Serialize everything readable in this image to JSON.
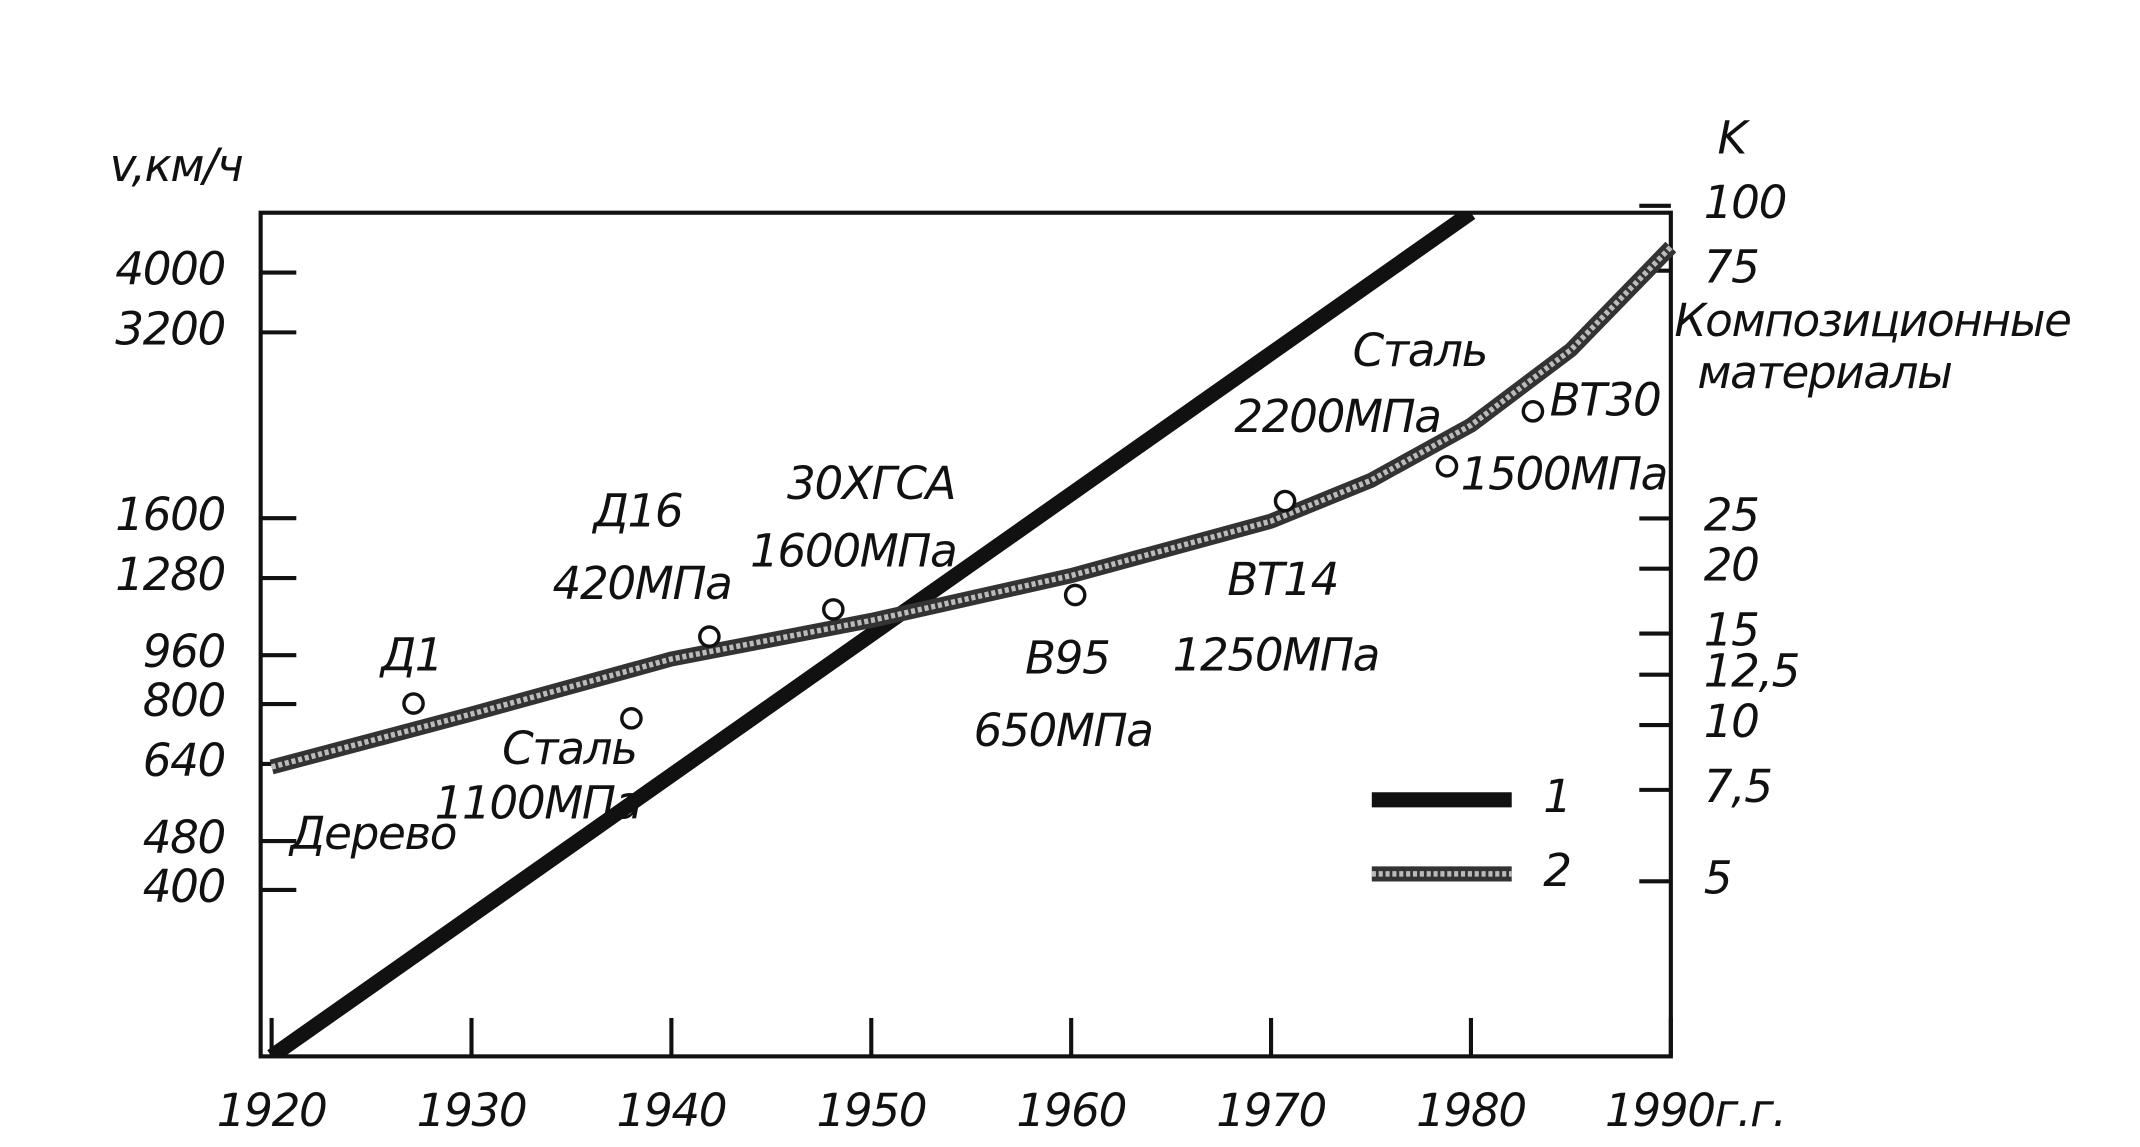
{
  "chart_data": {
    "type": "line",
    "y_label": "v,км/ч",
    "y2_label": "K",
    "xlim": [
      1920,
      1990
    ],
    "xticks": [
      1920,
      1930,
      1940,
      1950,
      1960,
      1970,
      1980,
      {
        "value": 1990,
        "label": "1990г.г."
      }
    ],
    "ylim": [
      215,
      5000
    ],
    "yticks": [
      400,
      480,
      640,
      800,
      960,
      1280,
      1600,
      3200,
      4000
    ],
    "log_y": true,
    "y2lim": [
      2.3,
      97
    ],
    "y2ticks": [
      5,
      {
        "value": 7.5,
        "label": "7,5"
      },
      10,
      {
        "value": 12.5,
        "label": "12,5"
      },
      15,
      20,
      25,
      75,
      100
    ],
    "log_y2": true,
    "series": [
      {
        "name": "1",
        "color": "#111111",
        "x": [
          1920,
          1980
        ],
        "values": [
          215,
          5000
        ]
      },
      {
        "name": "2",
        "color": "#333333",
        "axis": "y2",
        "x": [
          1920,
          1930,
          1940,
          1950,
          1960,
          1970,
          1975,
          1980,
          1985,
          1990
        ],
        "values": [
          8.3,
          10.5,
          13.4,
          15.9,
          19.4,
          24.7,
          29.6,
          37.8,
          52.8,
          83.3
        ]
      }
    ],
    "markers": {
      "axis": "y2",
      "x": [
        1927.1,
        1938.0,
        1941.9,
        1948.1,
        1960.2,
        1970.7,
        1978.8,
        1983.1
      ],
      "values": [
        11.0,
        10.3,
        14.8,
        16.7,
        17.8,
        27.0,
        31.5,
        40.2
      ]
    },
    "annotations": [
      "Д1",
      "Д16",
      "420МПа",
      "30ХГСА",
      "1600МПа",
      "Сталь",
      "1100МПа",
      "Дерево",
      "В95",
      "650МПа",
      "ВТ14",
      "1250МПа",
      "Сталь",
      "2200МПа",
      "ВТ30",
      "1500МПа",
      "Композиционные",
      "материалы"
    ]
  }
}
